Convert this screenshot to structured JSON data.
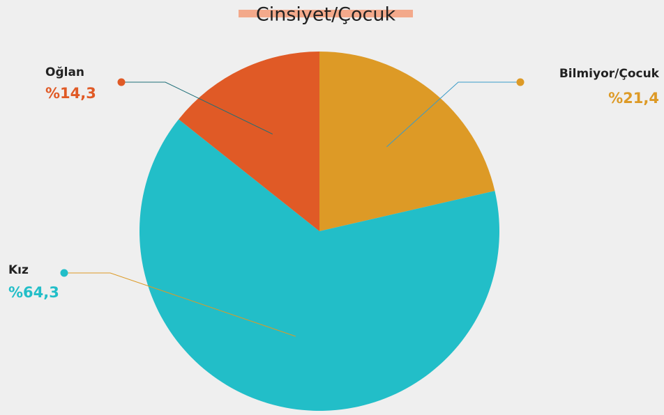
{
  "chart_data": {
    "type": "pie",
    "title": "Cinsiyet/Çocuk",
    "categories": [
      "Bilmiyor/Çocuk",
      "Kız",
      "Oğlan"
    ],
    "values": [
      21.4,
      64.3,
      14.3
    ],
    "value_labels": [
      "%21,4",
      "%64,3",
      "%14,3"
    ],
    "colors": [
      "#dd9a26",
      "#22bec8",
      "#e05a26"
    ]
  }
}
